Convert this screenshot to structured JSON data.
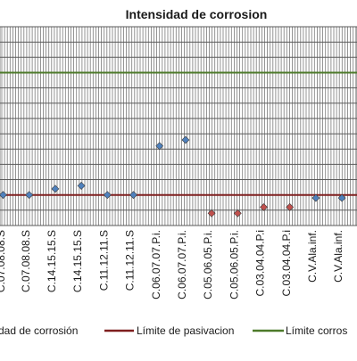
{
  "chart_data": {
    "type": "scatter",
    "title": "Intensidad de corrosion",
    "categories": [
      "C.07.08.08.S",
      "C.07.08.08.S",
      "C.14.15.15.S",
      "C.14.15.15.S",
      "C.11.12.11.S",
      "C.11.12.11.S",
      "C.06.07.07.P.i.",
      "C.06.07.07.P.i.",
      "C.05.06.05.P.i.",
      "C.05.06.05.P.i.",
      "C.03.04.04.P.i.",
      "C.03.04.04.P.i",
      "C.V.Ala.inf.",
      "C.V.Ala.inf."
    ],
    "visible_tick_labels": [
      "C.07.08.08.S",
      "C.14.15.15.S",
      "C.14.15.15.S",
      "C.11.12.11.S",
      "C.11.12.11.S",
      "C.06.07.07.P.i.",
      "C.06.07.07.P.i.",
      "C.05.06.05.P.i.",
      "C.05.06.05.P.i.",
      "C.03.04.04.P.i",
      "C.03.04.04.P.i",
      "C.V.Ala.inf.",
      "C.V.Ala.inf."
    ],
    "series": [
      {
        "name": "Intensidad de corrosión",
        "values": [
          0.1,
          0.1,
          0.12,
          0.13,
          0.1,
          0.1,
          0.26,
          0.28,
          null,
          null,
          null,
          null,
          0.09,
          0.09
        ],
        "color": "#4f81bd"
      },
      {
        "name": "Intensidad de corrosión",
        "values": [
          null,
          null,
          null,
          null,
          null,
          null,
          null,
          null,
          0.04,
          0.04,
          0.06,
          0.06,
          null,
          null
        ],
        "color": "#c0504d"
      }
    ],
    "reference_lines": [
      {
        "name": "Límite de pasivacion",
        "value": 0.1,
        "color": "#7f1f1f"
      },
      {
        "name": "Límite corrosión",
        "value": 0.5,
        "color": "#4d7a2a"
      }
    ],
    "legend": {
      "position": "bottom",
      "entries": [
        "dad de corrosión",
        "Límite de pasivacion",
        "Límite corros"
      ]
    },
    "ylim": [
      0,
      0.65
    ],
    "grid": true
  }
}
